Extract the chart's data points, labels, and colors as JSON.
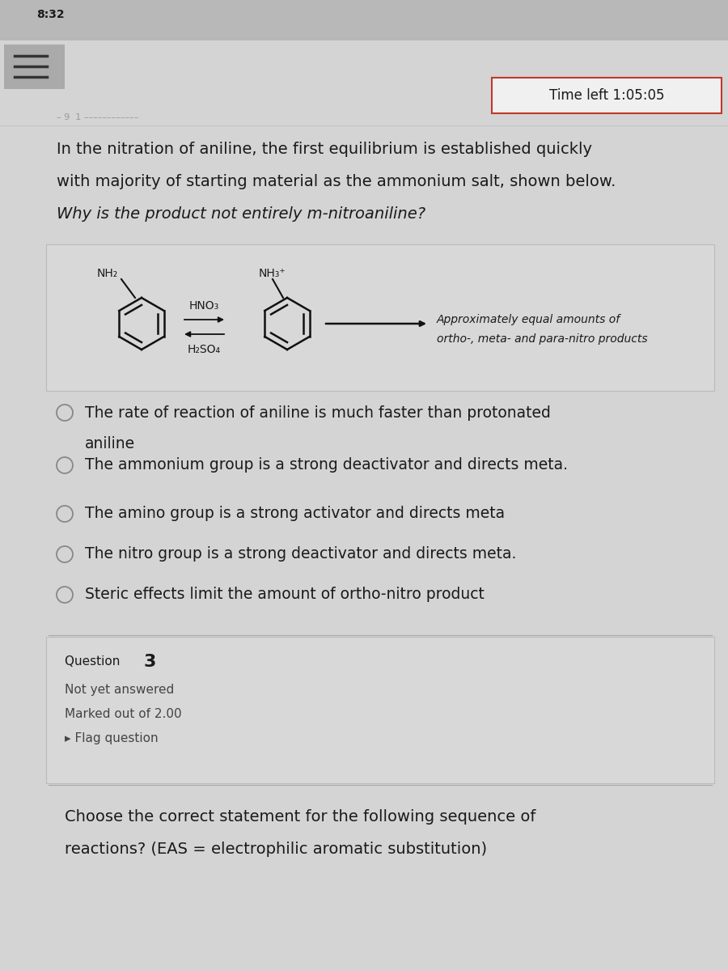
{
  "status_bar_text": "8:32",
  "time_left": "Time left 1:05:05",
  "question_text_lines": [
    "In the nitration of aniline, the first equilibrium is established quickly",
    "with majority of starting material as the ammonium salt, shown below.",
    "Why is the product not entirely m-nitroaniline?"
  ],
  "reaction_label_left": "NH₂",
  "reaction_reagent_top": "HNO₃",
  "reaction_reagent_bottom": "H₂SO₄",
  "reaction_label_right": "NH₃⁺",
  "reaction_product_text": "Approximately equal amounts of\northo-, meta- and para-nitro products",
  "answer_options": [
    "The rate of reaction of aniline is much faster than protonated\naniline",
    "The ammonium group is a strong deactivator and directs meta.",
    "The amino group is a strong activator and directs meta",
    "The nitro group is a strong deactivator and directs meta.",
    "Steric effects limit the amount of ortho-nitro product"
  ],
  "question3_label": "Question ",
  "question3_number": "3",
  "question3_status": "Not yet answered",
  "question3_marks": "Marked out of 2.00",
  "question3_flag": "▸ Flag question",
  "question3_text_lines": [
    "Choose the correct statement for the following sequence of",
    "reactions? (EAS = electrophilic aromatic substitution)"
  ],
  "bg_color": "#c8c8c8",
  "main_bg": "#d4d4d4",
  "card_color": "#dedede",
  "reaction_box_color": "#d8d8d8",
  "q3_box_color": "#d8d8d8",
  "text_color": "#1a1a1a",
  "subtext_color": "#444444",
  "timer_border_color": "#c0392b",
  "timer_bg": "#f0f0f0",
  "topbar_color": "#b8b8b8",
  "navarea_color": "#aaaaaa"
}
